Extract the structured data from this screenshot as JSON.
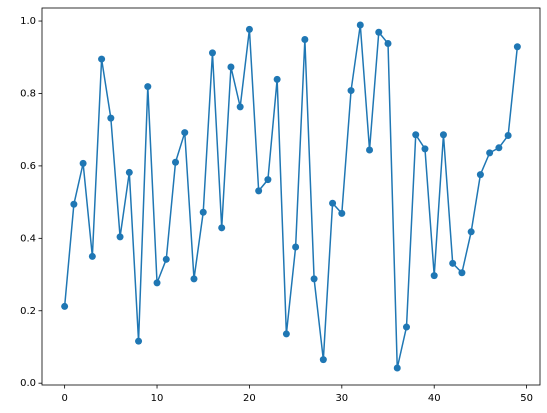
{
  "chart_data": {
    "type": "line",
    "x": [
      0,
      1,
      2,
      3,
      4,
      5,
      6,
      7,
      8,
      9,
      10,
      11,
      12,
      13,
      14,
      15,
      16,
      17,
      18,
      19,
      20,
      21,
      22,
      23,
      24,
      25,
      26,
      27,
      28,
      29,
      30,
      31,
      32,
      33,
      34,
      35,
      36,
      37,
      38,
      39,
      40,
      41,
      42,
      43,
      44,
      45,
      46,
      47,
      48,
      49
    ],
    "series": [
      {
        "color": "#1f77b4",
        "marker": "o",
        "values": [
          0.212,
          0.494,
          0.607,
          0.35,
          0.895,
          0.732,
          0.404,
          0.582,
          0.116,
          0.819,
          0.277,
          0.342,
          0.61,
          0.692,
          0.288,
          0.472,
          0.912,
          0.429,
          0.873,
          0.763,
          0.977,
          0.531,
          0.562,
          0.839,
          0.136,
          0.376,
          0.949,
          0.288,
          0.065,
          0.497,
          0.469,
          0.808,
          0.989,
          0.644,
          0.969,
          0.938,
          0.042,
          0.155,
          0.686,
          0.647,
          0.297,
          0.686,
          0.331,
          0.305,
          0.418,
          0.576,
          0.636,
          0.65,
          0.684,
          0.929
        ]
      }
    ],
    "xlim": [
      -2.45,
      51.45
    ],
    "ylim": [
      -0.005,
      1.036
    ],
    "xticks": [
      0,
      10,
      20,
      30,
      40,
      50
    ],
    "yticks": [
      {
        "value": 0,
        "label": "0.0"
      },
      0.2,
      0.4,
      0.6,
      0.8,
      {
        "value": 1,
        "label": "1.0"
      }
    ],
    "grid": false
  }
}
